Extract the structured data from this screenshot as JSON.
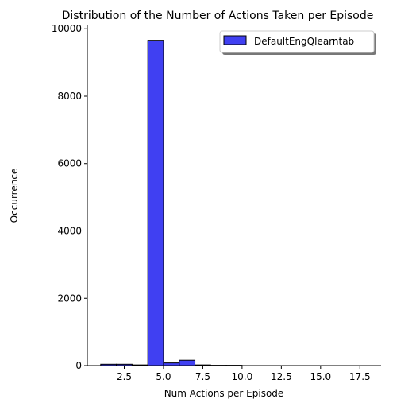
{
  "chart_data": {
    "type": "bar",
    "title": "Distribution of the Number of Actions Taken per Episode",
    "xlabel": "Num Actions per Episode",
    "ylabel": "Occurrence",
    "xlim": [
      0.15,
      18.85
    ],
    "ylim": [
      0,
      10100
    ],
    "x_ticks": [
      2.5,
      5.0,
      7.5,
      10.0,
      12.5,
      15.0,
      17.5
    ],
    "x_tick_labels": [
      "2.5",
      "5.0",
      "7.5",
      "10.0",
      "12.5",
      "15.0",
      "17.5"
    ],
    "y_ticks": [
      0,
      2000,
      4000,
      6000,
      8000,
      10000
    ],
    "y_tick_labels": [
      "0",
      "2000",
      "4000",
      "6000",
      "8000",
      "10000"
    ],
    "bins": [
      {
        "x0": 1.0,
        "x1": 2.0,
        "value": 40
      },
      {
        "x0": 2.0,
        "x1": 3.0,
        "value": 40
      },
      {
        "x0": 3.0,
        "x1": 4.0,
        "value": 20
      },
      {
        "x0": 4.0,
        "x1": 5.0,
        "value": 9660
      },
      {
        "x0": 5.0,
        "x1": 6.0,
        "value": 80
      },
      {
        "x0": 6.0,
        "x1": 7.0,
        "value": 160
      },
      {
        "x0": 7.0,
        "x1": 8.0,
        "value": 20
      },
      {
        "x0": 8.0,
        "x1": 9.0,
        "value": 10
      },
      {
        "x0": 9.0,
        "x1": 10.0,
        "value": 10
      }
    ],
    "series": [
      {
        "name": "DefaultEngQlearntab",
        "color": "#0000ee",
        "edge_color": "#000000"
      }
    ],
    "grid": false,
    "legend_position": "top-right"
  }
}
